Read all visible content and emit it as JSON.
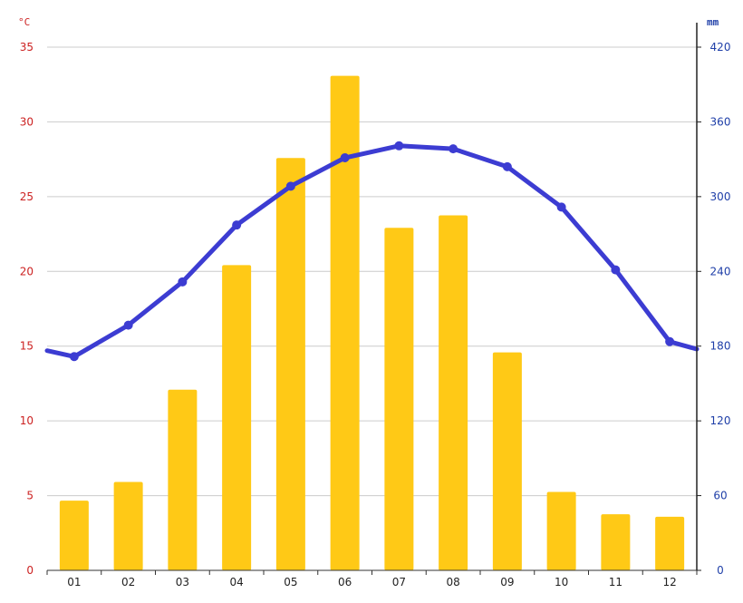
{
  "chart_data": {
    "type": "bar+line",
    "categories": [
      "01",
      "02",
      "03",
      "04",
      "05",
      "06",
      "07",
      "08",
      "09",
      "10",
      "11",
      "12"
    ],
    "precipitation_mm": [
      56,
      71,
      145,
      245,
      331,
      397,
      275,
      285,
      175,
      63,
      45,
      43
    ],
    "temperature_c": [
      14.3,
      16.4,
      19.3,
      23.1,
      25.7,
      27.6,
      28.4,
      28.2,
      27.0,
      24.3,
      20.1,
      15.3
    ],
    "temperature_edges_c": [
      14.7,
      14.8
    ],
    "left_axis": {
      "unit": "°C",
      "range": [
        0,
        35
      ],
      "ticks": [
        "0",
        "5",
        "10",
        "15",
        "20",
        "25",
        "30",
        "35"
      ]
    },
    "right_axis": {
      "unit": "mm",
      "range": [
        0,
        420
      ],
      "ticks": [
        "0",
        "60",
        "120",
        "180",
        "240",
        "300",
        "360",
        "420"
      ]
    },
    "grid": true,
    "colors": {
      "bars": "#ffc916",
      "line": "#3c3cd2",
      "left_axis_text": "#cc2222",
      "right_axis_text": "#1f3fa8",
      "grid": "#cccccc"
    }
  }
}
